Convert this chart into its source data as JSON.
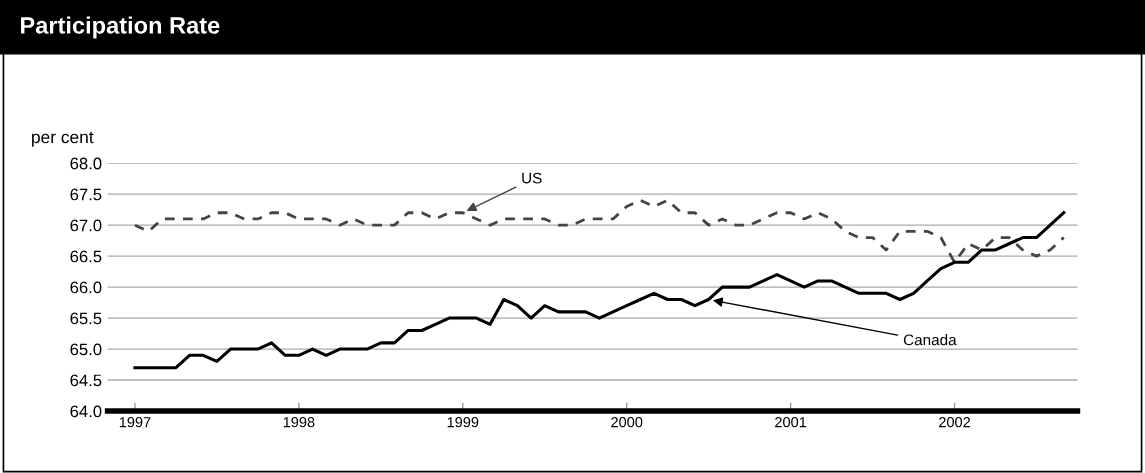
{
  "chart_data": {
    "type": "line",
    "title": "Participation Rate",
    "ylabel": "per cent",
    "x": [
      "1997-01",
      "1997-02",
      "1997-03",
      "1997-04",
      "1997-05",
      "1997-06",
      "1997-07",
      "1997-08",
      "1997-09",
      "1997-10",
      "1997-11",
      "1997-12",
      "1998-01",
      "1998-02",
      "1998-03",
      "1998-04",
      "1998-05",
      "1998-06",
      "1998-07",
      "1998-08",
      "1998-09",
      "1998-10",
      "1998-11",
      "1998-12",
      "1999-01",
      "1999-02",
      "1999-03",
      "1999-04",
      "1999-05",
      "1999-06",
      "1999-07",
      "1999-08",
      "1999-09",
      "1999-10",
      "1999-11",
      "1999-12",
      "2000-01",
      "2000-02",
      "2000-03",
      "2000-04",
      "2000-05",
      "2000-06",
      "2000-07",
      "2000-08",
      "2000-09",
      "2000-10",
      "2000-11",
      "2000-12",
      "2001-01",
      "2001-02",
      "2001-03",
      "2001-04",
      "2001-05",
      "2001-06",
      "2001-07",
      "2001-08",
      "2001-09",
      "2001-10",
      "2001-11",
      "2001-12",
      "2002-01",
      "2002-02",
      "2002-03",
      "2002-04",
      "2002-05",
      "2002-06",
      "2002-07",
      "2002-08",
      "2002-09"
    ],
    "series": [
      {
        "name": "US",
        "color": "#444444",
        "line_style": "dashed",
        "values": [
          67.0,
          66.9,
          67.1,
          67.1,
          67.1,
          67.1,
          67.2,
          67.2,
          67.1,
          67.1,
          67.2,
          67.2,
          67.1,
          67.1,
          67.1,
          67.0,
          67.1,
          67.0,
          67.0,
          67.0,
          67.2,
          67.2,
          67.1,
          67.2,
          67.2,
          67.1,
          67.0,
          67.1,
          67.1,
          67.1,
          67.1,
          67.0,
          67.0,
          67.1,
          67.1,
          67.1,
          67.3,
          67.4,
          67.3,
          67.4,
          67.2,
          67.2,
          67.0,
          67.1,
          67.0,
          67.0,
          67.1,
          67.2,
          67.2,
          67.1,
          67.2,
          67.1,
          66.9,
          66.8,
          66.8,
          66.6,
          66.9,
          66.9,
          66.9,
          66.8,
          66.4,
          66.7,
          66.6,
          66.8,
          66.8,
          66.6,
          66.5,
          66.6,
          66.8
        ]
      },
      {
        "name": "Canada",
        "color": "#000000",
        "line_style": "solid",
        "values": [
          64.7,
          64.7,
          64.7,
          64.7,
          64.9,
          64.9,
          64.8,
          65.0,
          65.0,
          65.0,
          65.1,
          64.9,
          64.9,
          65.0,
          64.9,
          65.0,
          65.0,
          65.0,
          65.1,
          65.1,
          65.3,
          65.3,
          65.4,
          65.5,
          65.5,
          65.5,
          65.4,
          65.8,
          65.7,
          65.5,
          65.7,
          65.6,
          65.6,
          65.6,
          65.5,
          65.6,
          65.7,
          65.8,
          65.9,
          65.8,
          65.8,
          65.7,
          65.8,
          66.0,
          66.0,
          66.0,
          66.1,
          66.2,
          66.1,
          66.0,
          66.1,
          66.1,
          66.0,
          65.9,
          65.9,
          65.9,
          65.8,
          65.9,
          66.1,
          66.3,
          66.4,
          66.4,
          66.6,
          66.6,
          66.7,
          66.8,
          66.8,
          67.0,
          67.2
        ]
      }
    ],
    "xlim": [
      "1996-11",
      "2002-10"
    ],
    "xticks": [
      {
        "value": "1997",
        "label": "1997"
      },
      {
        "value": "1998",
        "label": "1998"
      },
      {
        "value": "1999",
        "label": "1999"
      },
      {
        "value": "2000",
        "label": "2000"
      },
      {
        "value": "2001",
        "label": "2001"
      },
      {
        "value": "2002",
        "label": "2002"
      }
    ],
    "ylim": [
      64.0,
      68.0
    ],
    "yticks": [
      {
        "value": 64.0,
        "label": "64.0"
      },
      {
        "value": 64.5,
        "label": "64.5"
      },
      {
        "value": 65.0,
        "label": "65.0"
      },
      {
        "value": 65.5,
        "label": "65.5"
      },
      {
        "value": 66.0,
        "label": "66.0"
      },
      {
        "value": 66.5,
        "label": "66.5"
      },
      {
        "value": 67.0,
        "label": "67.0"
      },
      {
        "value": 67.5,
        "label": "67.5"
      },
      {
        "value": 68.0,
        "label": "68.0"
      }
    ],
    "grid": "y",
    "marker": "none"
  }
}
